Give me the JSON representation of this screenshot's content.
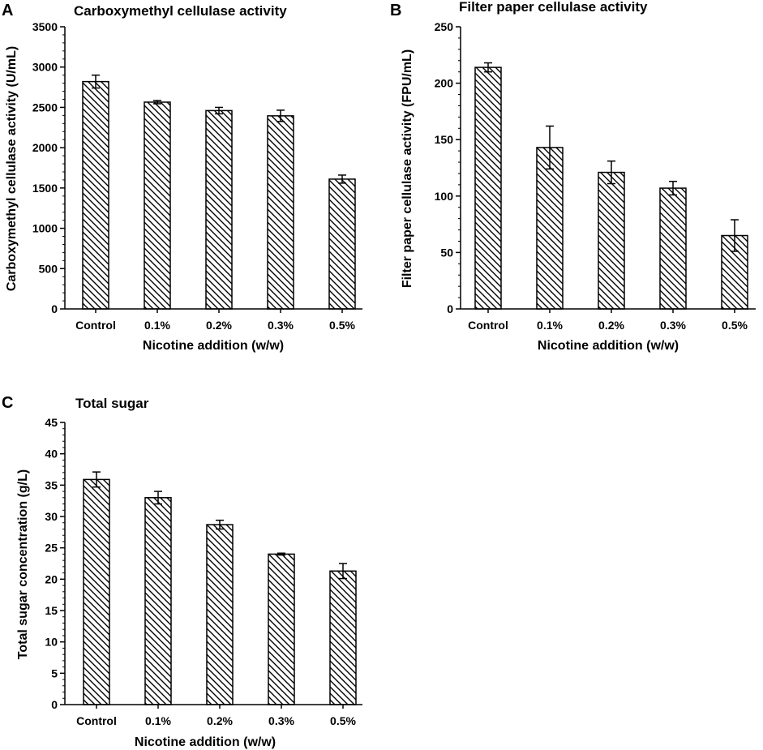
{
  "chart_data": [
    {
      "panel": "A",
      "type": "bar",
      "title": "Carboxymethyl cellulase activity",
      "xlabel": "Nicotine addition (w/w)",
      "ylabel": "Carboxymethyl cellulase activity (U/mL)",
      "categories": [
        "Control",
        "0.1%",
        "0.2%",
        "0.3%",
        "0.5%"
      ],
      "values": [
        2820,
        2565,
        2460,
        2395,
        1610
      ],
      "errors": [
        80,
        20,
        40,
        70,
        50
      ],
      "ylim": [
        0,
        3500
      ],
      "yticks": [
        0,
        500,
        1000,
        1500,
        2000,
        2500,
        3000,
        3500
      ],
      "ytick_labels": [
        "0",
        "500",
        "1000",
        "1500",
        "2000",
        "2500",
        "3000",
        "3500"
      ],
      "minor_ticks_per_major": 5,
      "fill": "hatch-diagonal"
    },
    {
      "panel": "B",
      "type": "bar",
      "title": "Filter paper cellulase activity",
      "xlabel": "Nicotine addition (w/w)",
      "ylabel": "Filter paper cellulase activity (FPU/mL)",
      "categories": [
        "Control",
        "0.1%",
        "0.2%",
        "0.3%",
        "0.5%"
      ],
      "values": [
        214,
        143,
        121,
        107,
        65
      ],
      "errors": [
        4,
        19,
        10,
        6,
        14
      ],
      "ylim": [
        0,
        250
      ],
      "yticks": [
        0,
        50,
        100,
        150,
        200,
        250
      ],
      "ytick_labels": [
        "0",
        "50",
        "100",
        "150",
        "200",
        "250"
      ],
      "minor_ticks_per_major": 5,
      "fill": "hatch-diagonal"
    },
    {
      "panel": "C",
      "type": "bar",
      "title": "Total sugar",
      "xlabel": "Nicotine addition (w/w)",
      "ylabel": "Total sugar concentration (g/L)",
      "categories": [
        "Control",
        "0.1%",
        "0.2%",
        "0.3%",
        "0.5%"
      ],
      "values": [
        35.9,
        33.0,
        28.7,
        24.0,
        21.3
      ],
      "errors": [
        1.2,
        1.0,
        0.7,
        0.15,
        1.2
      ],
      "ylim": [
        0,
        45
      ],
      "yticks": [
        0,
        5,
        10,
        15,
        20,
        25,
        30,
        35,
        40,
        45
      ],
      "ytick_labels": [
        "0",
        "5",
        "10",
        "15",
        "20",
        "25",
        "30",
        "35",
        "40",
        "45"
      ],
      "minor_ticks_per_major": 5,
      "fill": "hatch-diagonal"
    }
  ]
}
